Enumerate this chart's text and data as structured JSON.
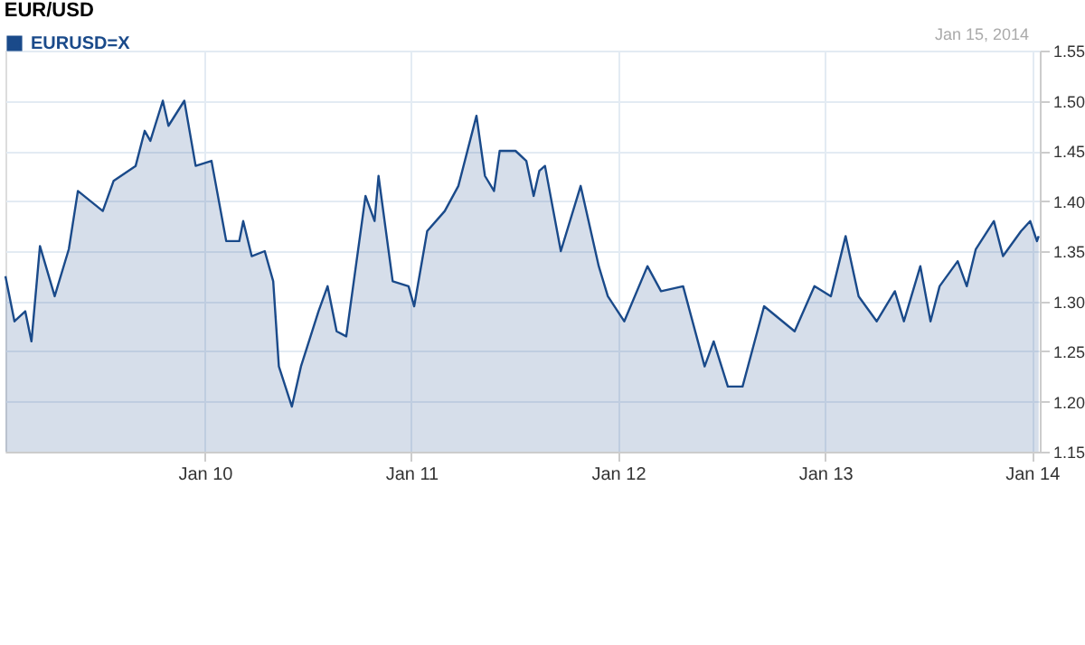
{
  "chart_data": {
    "type": "area",
    "title": "EUR/USD",
    "annotations": [
      "Jan 15, 2014"
    ],
    "legend": "top left",
    "grid": true,
    "xlim": [
      "2009-01-14",
      "2014-01-15"
    ],
    "xticks": [
      {
        "value": "2010-01-01",
        "label": "Jan 10"
      },
      {
        "value": "2011-01-01",
        "label": "Jan 11"
      },
      {
        "value": "2012-01-01",
        "label": "Jan 12"
      },
      {
        "value": "2013-01-01",
        "label": "Jan 13"
      },
      {
        "value": "2014-01-01",
        "label": "Jan 14"
      }
    ],
    "ylim": [
      1.15,
      1.55
    ],
    "yticks": [
      1.15,
      {
        "value": 1.2,
        "label": "1.20"
      },
      1.25,
      {
        "value": 1.3,
        "label": "1.30"
      },
      1.35,
      {
        "value": 1.4,
        "label": "1.40"
      },
      1.45,
      {
        "value": 1.5,
        "label": "1.50"
      },
      1.55
    ],
    "series": [
      {
        "name": "EURUSD=X",
        "color": "#1a4a8a",
        "x": [
          "2009-01-14",
          "2009-01-30",
          "2009-02-18",
          "2009-03-01",
          "2009-03-16",
          "2009-04-11",
          "2009-05-06",
          "2009-05-22",
          "2009-07-05",
          "2009-07-24",
          "2009-09-01",
          "2009-09-17",
          "2009-09-27",
          "2009-10-19",
          "2009-10-29",
          "2009-11-26",
          "2009-12-16",
          "2010-01-13",
          "2010-02-08",
          "2010-03-03",
          "2010-03-10",
          "2010-03-25",
          "2010-04-17",
          "2010-05-02",
          "2010-05-12",
          "2010-06-04",
          "2010-06-20",
          "2010-07-21",
          "2010-08-06",
          "2010-08-22",
          "2010-09-08",
          "2010-10-12",
          "2010-10-28",
          "2010-11-04",
          "2010-11-29",
          "2010-12-27",
          "2011-01-06",
          "2011-01-29",
          "2011-03-01",
          "2011-03-25",
          "2011-04-26",
          "2011-05-11",
          "2011-05-27",
          "2011-06-06",
          "2011-07-04",
          "2011-07-23",
          "2011-08-05",
          "2011-08-15",
          "2011-08-25",
          "2011-09-22",
          "2011-10-27",
          "2011-11-28",
          "2011-12-14",
          "2012-01-12",
          "2012-02-22",
          "2012-03-17",
          "2012-04-25",
          "2012-06-02",
          "2012-06-18",
          "2012-07-13",
          "2012-08-08",
          "2012-09-15",
          "2012-11-08",
          "2012-12-13",
          "2013-01-11",
          "2013-02-06",
          "2013-03-01",
          "2013-04-02",
          "2013-05-04",
          "2013-05-20",
          "2013-06-18",
          "2013-07-06",
          "2013-07-22",
          "2013-08-23",
          "2013-09-08",
          "2013-09-24",
          "2013-10-26",
          "2013-11-11",
          "2013-12-13",
          "2013-12-29",
          "2014-01-10",
          "2014-01-13"
        ],
        "values": [
          1.325,
          1.28,
          1.29,
          1.26,
          1.355,
          1.305,
          1.352,
          1.41,
          1.39,
          1.42,
          1.435,
          1.47,
          1.46,
          1.5,
          1.475,
          1.5,
          1.435,
          1.44,
          1.36,
          1.36,
          1.38,
          1.345,
          1.35,
          1.32,
          1.235,
          1.195,
          1.235,
          1.29,
          1.315,
          1.27,
          1.265,
          1.405,
          1.38,
          1.425,
          1.32,
          1.315,
          1.295,
          1.37,
          1.39,
          1.415,
          1.485,
          1.425,
          1.41,
          1.45,
          1.45,
          1.44,
          1.405,
          1.43,
          1.435,
          1.35,
          1.415,
          1.335,
          1.305,
          1.28,
          1.335,
          1.31,
          1.315,
          1.235,
          1.26,
          1.215,
          1.215,
          1.295,
          1.27,
          1.315,
          1.305,
          1.365,
          1.305,
          1.28,
          1.31,
          1.28,
          1.335,
          1.28,
          1.315,
          1.34,
          1.315,
          1.352,
          1.38,
          1.345,
          1.37,
          1.38,
          1.36,
          1.365
        ]
      }
    ]
  }
}
